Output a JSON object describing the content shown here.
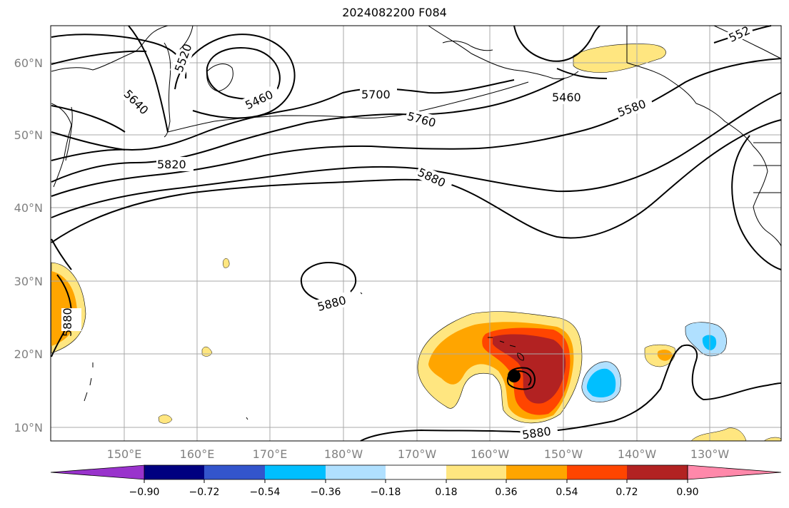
{
  "title": "2024082200 F084",
  "map": {
    "lat_ticks": [
      "10°N",
      "20°N",
      "30°N",
      "40°N",
      "50°N",
      "60°N"
    ],
    "lon_ticks": [
      "150°E",
      "160°E",
      "170°E",
      "180°W",
      "170°W",
      "160°W",
      "150°W",
      "140°W",
      "130°W"
    ],
    "gridlines": true,
    "contour_labels": [
      "5520",
      "5640",
      "5460",
      "5700",
      "5760",
      "5820",
      "5880",
      "5460",
      "5580",
      "5880",
      "5880",
      "5880",
      "552"
    ],
    "storm_marker": "filled-circle"
  },
  "colorbar": {
    "tick_labels": [
      "−0.90",
      "−0.72",
      "−0.54",
      "−0.36",
      "−0.18",
      "0.18",
      "0.36",
      "0.54",
      "0.72",
      "0.90"
    ],
    "colors": [
      "#9933cc",
      "#000080",
      "#3355cc",
      "#00bfff",
      "#b0e0ff",
      "#ffffff",
      "#ffe680",
      "#ffa500",
      "#ff4500",
      "#b22222",
      "#ff88aa"
    ]
  }
}
